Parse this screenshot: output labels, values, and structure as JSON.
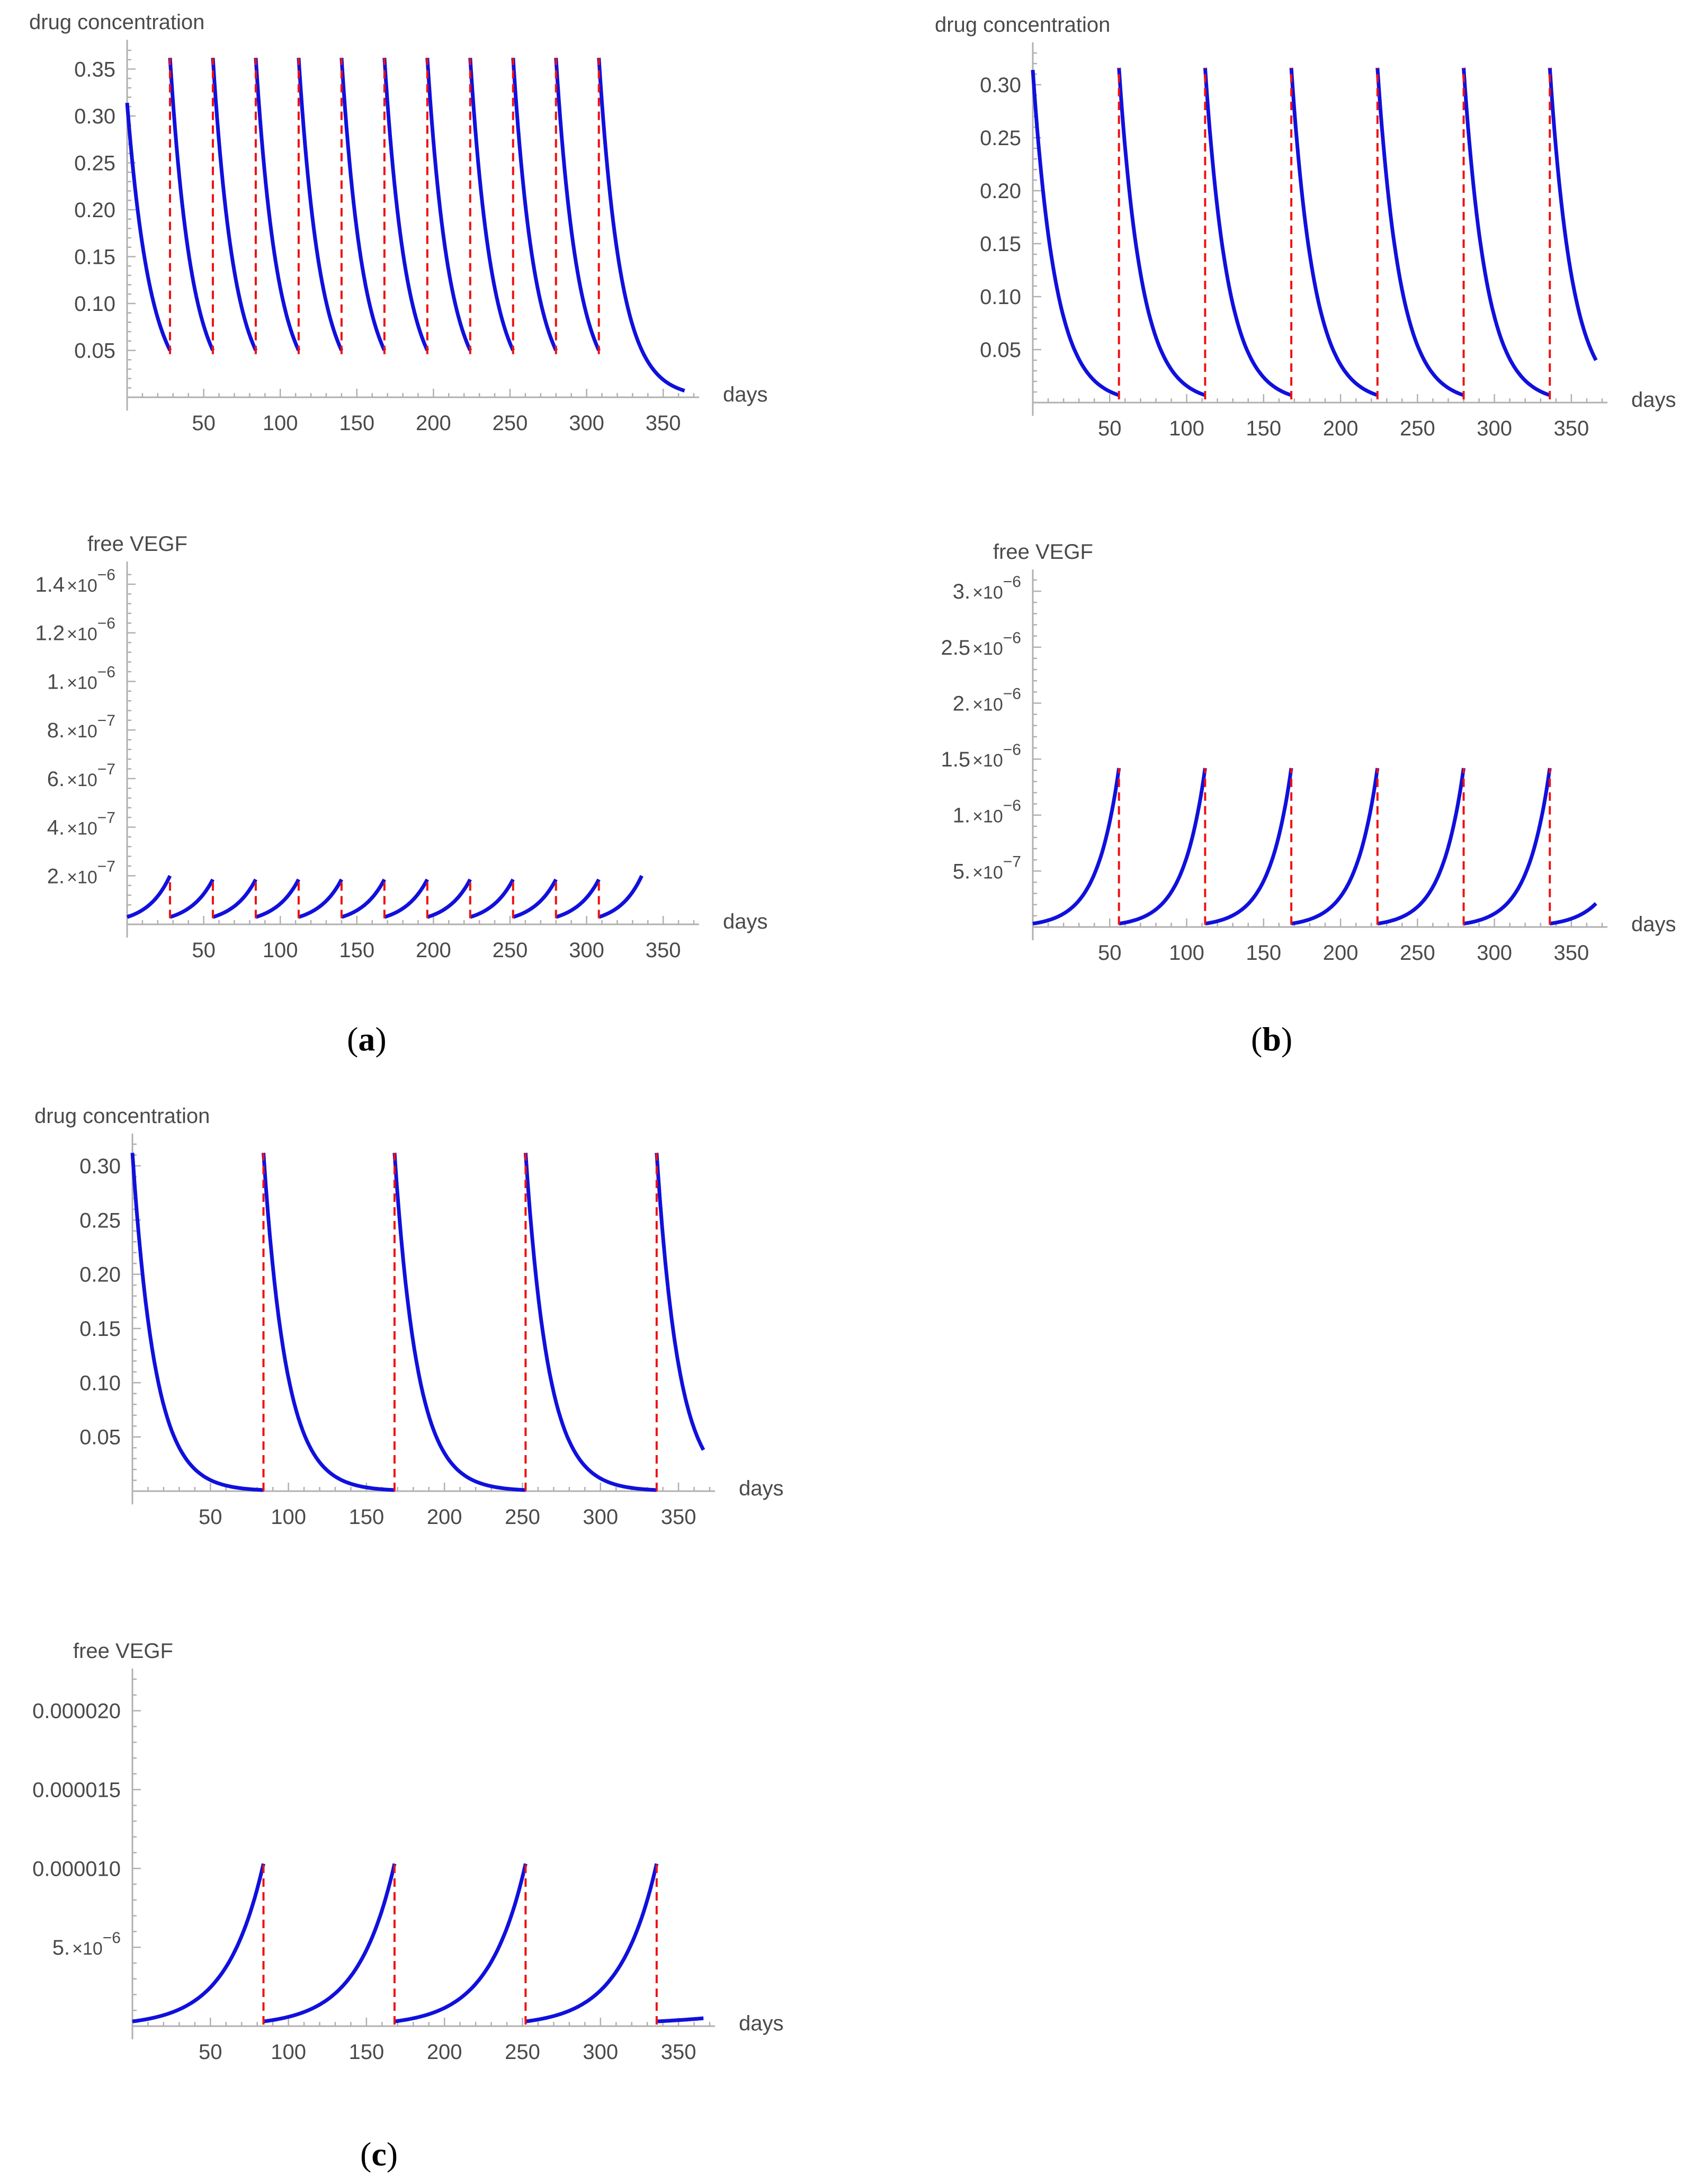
{
  "figure": {
    "panel_labels": [
      {
        "open": "(",
        "letter": "a",
        "close": ")"
      },
      {
        "open": "(",
        "letter": "b",
        "close": ")"
      },
      {
        "open": "(",
        "letter": "c",
        "close": ")"
      }
    ]
  },
  "colors": {
    "curve": "#1010dd",
    "dose_line": "#ee1111",
    "axis": "#b0b0b0",
    "tick_text": "#4a4a4a"
  },
  "chart_data": [
    {
      "id": "a-drug",
      "panel": "a",
      "type": "line",
      "title": "drug concentration",
      "xlabel": "days",
      "xlim": [
        0,
        370
      ],
      "ylim": [
        0,
        0.37
      ],
      "xticks": [
        50,
        100,
        150,
        200,
        250,
        300,
        350
      ],
      "xtick_labels": [
        "50",
        "100",
        "150",
        "200",
        "250",
        "300",
        "350"
      ],
      "yticks": [
        0.05,
        0.1,
        0.15,
        0.2,
        0.25,
        0.3,
        0.35
      ],
      "ytick_labels": [
        "0.05",
        "0.10",
        "0.15",
        "0.20",
        "0.25",
        "0.30",
        "0.35"
      ],
      "curve": {
        "kind": "decay",
        "dose_days": [
          28,
          56,
          84,
          112,
          140,
          168,
          196,
          224,
          252,
          280,
          308
        ],
        "start_value": 0.314,
        "peak_value": 0.362,
        "trough_value": 0.05,
        "end_day": 364,
        "end_value": 0.007
      },
      "dose_lines": {
        "days": [
          28,
          56,
          84,
          112,
          140,
          168,
          196,
          224,
          252,
          280,
          308
        ],
        "low": 0.046,
        "high": 0.362
      }
    },
    {
      "id": "b-drug",
      "panel": "b",
      "type": "line",
      "title": "drug concentration",
      "xlabel": "days",
      "xlim": [
        0,
        370
      ],
      "ylim": [
        0,
        0.33
      ],
      "xticks": [
        50,
        100,
        150,
        200,
        250,
        300,
        350
      ],
      "xtick_labels": [
        "50",
        "100",
        "150",
        "200",
        "250",
        "300",
        "350"
      ],
      "yticks": [
        0.05,
        0.1,
        0.15,
        0.2,
        0.25,
        0.3
      ],
      "ytick_labels": [
        "0.05",
        "0.10",
        "0.15",
        "0.20",
        "0.25",
        "0.30"
      ],
      "curve": {
        "kind": "decay",
        "dose_days": [
          56,
          112,
          168,
          224,
          280,
          336
        ],
        "start_value": 0.314,
        "peak_value": 0.316,
        "trough_value": 0.007,
        "end_day": 366,
        "end_value": 0.04
      },
      "dose_lines": {
        "days": [
          56,
          112,
          168,
          224,
          280,
          336
        ],
        "low": 0.003,
        "high": 0.316
      }
    },
    {
      "id": "a-vegf",
      "panel": "a",
      "type": "line",
      "title": "free VEGF",
      "xlabel": "days",
      "xlim": [
        0,
        370
      ],
      "ylim": [
        0,
        1.45e-06
      ],
      "xticks": [
        50,
        100,
        150,
        200,
        250,
        300,
        350
      ],
      "xtick_labels": [
        "50",
        "100",
        "150",
        "200",
        "250",
        "300",
        "350"
      ],
      "yticks": [
        2e-07,
        4e-07,
        6e-07,
        8e-07,
        1e-06,
        1.2e-06,
        1.4e-06
      ],
      "ytick_labels": [
        {
          "m": "2.",
          "b": "×10",
          "e": "−7"
        },
        {
          "m": "4.",
          "b": "×10",
          "e": "−7"
        },
        {
          "m": "6.",
          "b": "×10",
          "e": "−7"
        },
        {
          "m": "8.",
          "b": "×10",
          "e": "−7"
        },
        {
          "m": "1.",
          "b": "×10",
          "e": "−6"
        },
        {
          "m": "1.2",
          "b": "×10",
          "e": "−6"
        },
        {
          "m": "1.4",
          "b": "×10",
          "e": "−6"
        }
      ],
      "curve": {
        "kind": "rise",
        "dose_days": [
          28,
          56,
          84,
          112,
          140,
          168,
          196,
          224,
          252,
          280,
          308
        ],
        "start_value": 3e-08,
        "peak_value": 2e-07,
        "reset_value": 3e-08,
        "segment_peak": 1.85e-07,
        "end_day": 336,
        "end_value": 2e-07
      },
      "dose_lines": {
        "days": [
          28,
          56,
          84,
          112,
          140,
          168,
          196,
          224,
          252,
          280,
          308
        ],
        "low": 2.5e-08,
        "high": 1.9e-07
      }
    },
    {
      "id": "b-vegf",
      "panel": "b",
      "type": "line",
      "title": "free VEGF",
      "xlabel": "days",
      "xlim": [
        0,
        370
      ],
      "ylim": [
        0,
        3.1e-06
      ],
      "xticks": [
        50,
        100,
        150,
        200,
        250,
        300,
        350
      ],
      "xtick_labels": [
        "50",
        "100",
        "150",
        "200",
        "250",
        "300",
        "350"
      ],
      "yticks": [
        5e-07,
        1e-06,
        1.5e-06,
        2e-06,
        2.5e-06,
        3e-06
      ],
      "ytick_labels": [
        {
          "m": "5.",
          "b": "×10",
          "e": "−7"
        },
        {
          "m": "1.",
          "b": "×10",
          "e": "−6"
        },
        {
          "m": "1.5",
          "b": "×10",
          "e": "−6"
        },
        {
          "m": "2.",
          "b": "×10",
          "e": "−6"
        },
        {
          "m": "2.5",
          "b": "×10",
          "e": "−6"
        },
        {
          "m": "3.",
          "b": "×10",
          "e": "−6"
        }
      ],
      "curve": {
        "kind": "rise",
        "dose_days": [
          56,
          112,
          168,
          224,
          280,
          336
        ],
        "start_value": 3e-08,
        "peak_value": 1.42e-06,
        "reset_value": 3e-08,
        "segment_peak": 1.42e-06,
        "end_day": 366,
        "end_value": 2.1e-07
      },
      "dose_lines": {
        "days": [
          56,
          112,
          168,
          224,
          280,
          336
        ],
        "low": 2e-08,
        "high": 1.42e-06
      }
    },
    {
      "id": "c-drug",
      "panel": "c",
      "type": "line",
      "title": "drug concentration",
      "xlabel": "days",
      "xlim": [
        0,
        370
      ],
      "ylim": [
        0,
        0.32
      ],
      "xticks": [
        50,
        100,
        150,
        200,
        250,
        300,
        350
      ],
      "xtick_labels": [
        "50",
        "100",
        "150",
        "200",
        "250",
        "300",
        "350"
      ],
      "yticks": [
        0.05,
        0.1,
        0.15,
        0.2,
        0.25,
        0.3
      ],
      "ytick_labels": [
        "0.05",
        "0.10",
        "0.15",
        "0.20",
        "0.25",
        "0.30"
      ],
      "curve": {
        "kind": "decay",
        "dose_days": [
          84,
          168,
          252,
          336
        ],
        "start_value": 0.312,
        "peak_value": 0.312,
        "trough_value": 0.001,
        "end_day": 366,
        "end_value": 0.038
      },
      "dose_lines": {
        "days": [
          84,
          168,
          252,
          336
        ],
        "low": 0.0,
        "high": 0.312
      }
    },
    {
      "id": "c-vegf",
      "panel": "c",
      "type": "line",
      "title": "free VEGF",
      "xlabel": "days",
      "xlim": [
        0,
        370
      ],
      "ylim": [
        0,
        2.2e-05
      ],
      "xticks": [
        50,
        100,
        150,
        200,
        250,
        300,
        350
      ],
      "xtick_labels": [
        "50",
        "100",
        "150",
        "200",
        "250",
        "300",
        "350"
      ],
      "yticks": [
        5e-06,
        1e-05,
        1.5e-05,
        2e-05
      ],
      "ytick_labels": [
        {
          "m": "5.",
          "b": "×10",
          "e": "−6"
        },
        {
          "m": "0.000010",
          "b": "",
          "e": ""
        },
        {
          "m": "0.000015",
          "b": "",
          "e": ""
        },
        {
          "m": "0.000020",
          "b": "",
          "e": ""
        }
      ],
      "curve": {
        "kind": "rise",
        "dose_days": [
          84,
          168,
          252,
          336
        ],
        "start_value": 3e-07,
        "peak_value": 1.03e-05,
        "reset_value": 3e-07,
        "segment_peak": 1.03e-05,
        "end_day": 366,
        "end_value": 5e-07
      },
      "dose_lines": {
        "days": [
          84,
          168,
          252,
          336
        ],
        "low": 1e-07,
        "high": 1.03e-05
      }
    }
  ]
}
